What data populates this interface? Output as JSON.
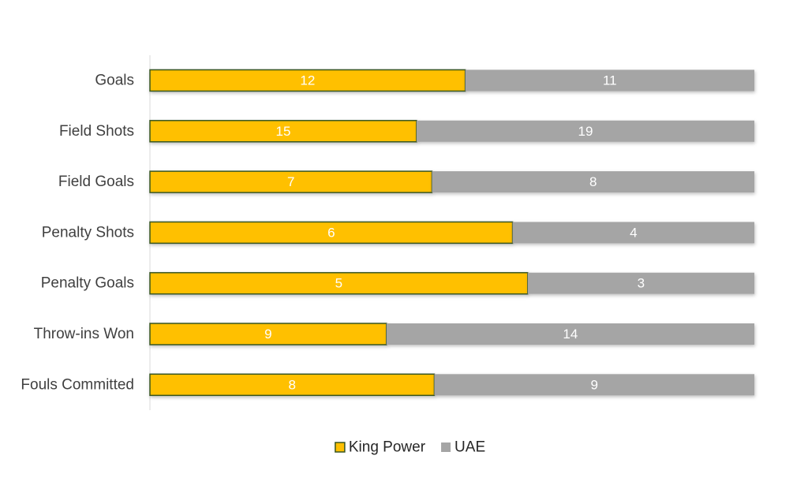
{
  "chart_data": {
    "type": "bar",
    "orientation": "horizontal",
    "stacking": "percent",
    "categories": [
      "Goals",
      "Field Shots",
      "Field Goals",
      "Penalty Shots",
      "Penalty Goals",
      "Throw-ins Won",
      "Fouls Committed"
    ],
    "series": [
      {
        "name": "King Power",
        "values": [
          12,
          15,
          7,
          6,
          5,
          9,
          8
        ],
        "color": "#FFC000",
        "border_color": "#375623"
      },
      {
        "name": "UAE",
        "values": [
          11,
          19,
          8,
          4,
          3,
          14,
          9
        ],
        "color": "#A5A5A5"
      }
    ],
    "title": "",
    "xlabel": "",
    "ylabel": "",
    "grid": false,
    "data_labels": true,
    "legend_position": "bottom"
  }
}
